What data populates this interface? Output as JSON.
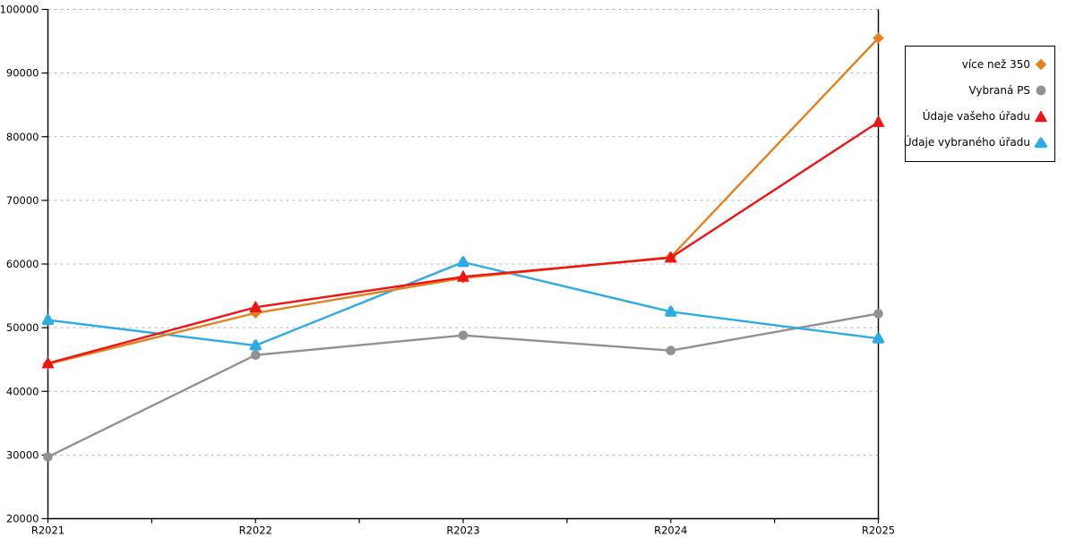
{
  "chart_data": {
    "type": "line",
    "title": "",
    "xlabel": "",
    "ylabel": "",
    "categories": [
      "R2021",
      "R2022",
      "R2023",
      "R2024",
      "R2025"
    ],
    "series": [
      {
        "name": "více než 350",
        "marker": "diamond",
        "color": "#E2811E",
        "values": [
          44300,
          52300,
          57800,
          61100,
          95500
        ]
      },
      {
        "name": "Vybraná PS",
        "marker": "circle",
        "color": "#919191",
        "values": [
          29700,
          45700,
          48800,
          46400,
          52200
        ]
      },
      {
        "name": "Údaje vašeho úřadu",
        "marker": "triangle",
        "color": "#EE1414",
        "values": [
          44400,
          53200,
          58000,
          61000,
          82300
        ]
      },
      {
        "name": "Údaje vybraného úřadu",
        "marker": "triangle-round",
        "color": "#2CACE3",
        "values": [
          51200,
          47200,
          60300,
          52500,
          48300
        ]
      }
    ],
    "draw_order": [
      1,
      3,
      0,
      2
    ],
    "ylim": [
      20000,
      100000
    ],
    "ytick_step": 10000,
    "ytick_labels": [
      "20000",
      "30000",
      "40000",
      "50000",
      "60000",
      "70000",
      "80000",
      "90000",
      "100000"
    ],
    "grid": "horizontal-dashed",
    "grid_color": "#b3b3b3",
    "axis_color": "#000000",
    "legend_position": "right"
  }
}
